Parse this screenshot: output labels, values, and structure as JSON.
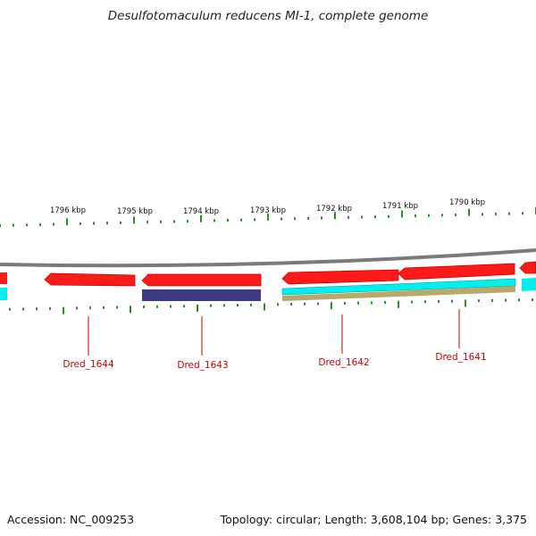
{
  "title": "Desulfotomaculum reducens MI-1, complete genome",
  "accession": "Accession: NC_009253",
  "summary": "Topology: circular; Length: 3,608,104 bp; Genes: 3,375",
  "colors": {
    "backbone": "#808080",
    "tick": "#2e8b2e",
    "forward_cds": "#ff1a1a",
    "reverse_cds": "#ff1a1a",
    "rna_purple": "#3d3a85",
    "cyan_track": "#00f0f0",
    "olive_track": "#b8a86a",
    "gene_label": "#cc0000"
  },
  "kbp_labels": [
    "1796 kbp",
    "1795 kbp",
    "1794 kbp",
    "1793 kbp",
    "1792 kbp",
    "1791 kbp",
    "1790 kbp"
  ],
  "genes": [
    {
      "label": "Dred_1644"
    },
    {
      "label": "Dred_1643"
    },
    {
      "label": "Dred_1642"
    },
    {
      "label": "Dred_1641"
    }
  ]
}
